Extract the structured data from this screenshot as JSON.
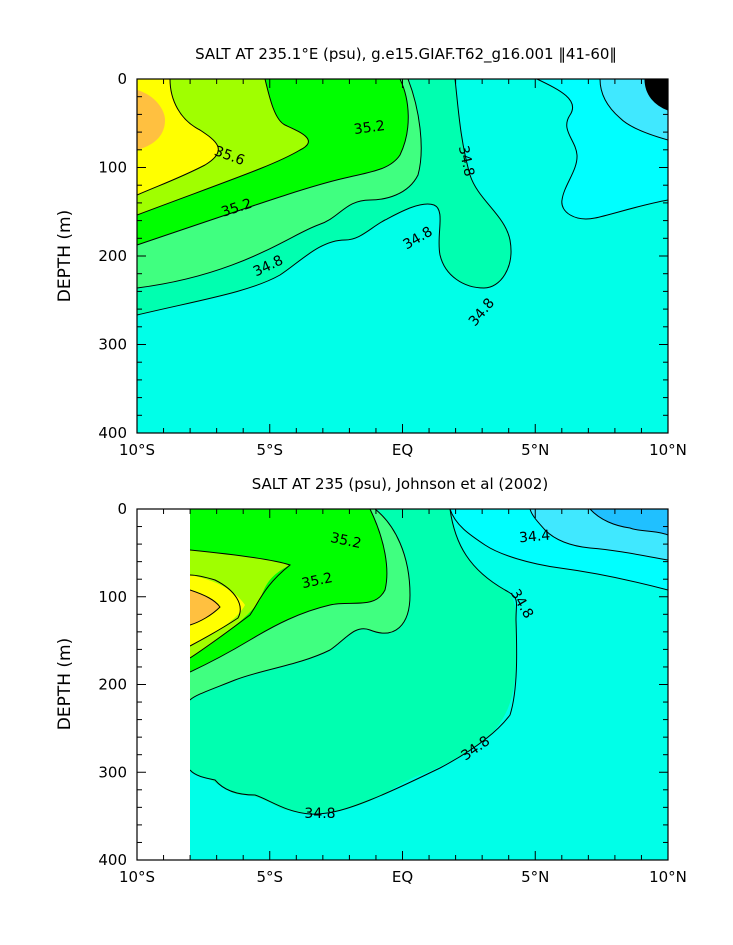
{
  "chart_data": [
    {
      "type": "contour",
      "title": "SALT AT 235.1°E (psu), g.e15.GIAF.T62_g16.001 ‖41-60‖",
      "xlabel": "",
      "ylabel": "DEPTH (m)",
      "x_ticks": [
        "10°S",
        "5°S",
        "EQ",
        "5°N",
        "10°N"
      ],
      "y_ticks": [
        "0",
        "100",
        "200",
        "300",
        "400"
      ],
      "xlim": [
        -10,
        10
      ],
      "ylim": [
        400,
        0
      ],
      "contour_labels": [
        "35.2",
        "35.6",
        "35.2",
        "34.8",
        "34.8",
        "34.8",
        "34.8"
      ],
      "colors": {
        "max": "#ffc040",
        "35.6": "#ffff00",
        "35.4": "#a0ff00",
        "35.2": "#00ff00",
        "35.0": "#40ff80",
        "34.8": "#00ffb0",
        "34.6": "#00ffe8",
        "34.4": "#00ffff",
        "34.2": "#40e8ff"
      }
    },
    {
      "type": "contour",
      "title": "SALT AT 235 (psu), Johnson et al (2002)",
      "xlabel": "",
      "ylabel": "DEPTH (m)",
      "x_ticks": [
        "10°S",
        "5°S",
        "EQ",
        "5°N",
        "10°N"
      ],
      "y_ticks": [
        "0",
        "100",
        "200",
        "300",
        "400"
      ],
      "xlim": [
        -10,
        10
      ],
      "ylim": [
        400,
        0
      ],
      "data_start_lat": -8,
      "contour_labels": [
        "35.2",
        "35.2",
        "34.4",
        "34.8",
        "34.8",
        "34.8"
      ],
      "colors": {
        "max": "#ffc040",
        "35.6": "#ffff00",
        "35.4": "#a0ff00",
        "35.2": "#00ff00",
        "35.0": "#40ff80",
        "34.8": "#00ffb0",
        "34.6": "#00ffe8",
        "34.4": "#00ffff",
        "34.2": "#40e8ff",
        "34.0": "#20c0ff"
      }
    }
  ]
}
